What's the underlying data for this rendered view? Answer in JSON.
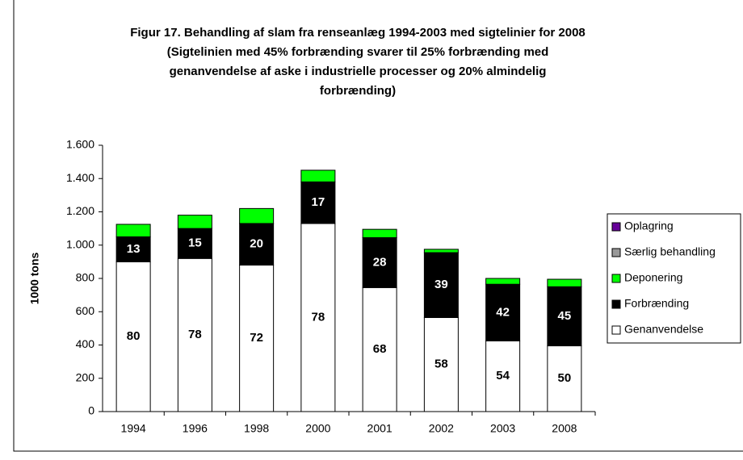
{
  "chart_data": {
    "type": "stacked_bar",
    "title": [
      "Figur 17. Behandling af slam fra renseanlæg 1994-2003 med sigtelinier for 2008",
      "(Sigtelinien med 45% forbrænding svarer til 25% forbrænding med",
      "genanvendelse af aske i industrielle processer og 20% almindelig",
      "forbrænding)"
    ],
    "y_label": "1000 tons",
    "categories": [
      "1994",
      "1996",
      "1998",
      "2000",
      "2001",
      "2002",
      "2003",
      "2008"
    ],
    "series": [
      {
        "name": "Genanvendelse",
        "color": "#ffffff",
        "values": [
          900,
          920,
          880,
          1130,
          745,
          565,
          425,
          395
        ],
        "labels": [
          80,
          78,
          72,
          78,
          68,
          58,
          54,
          50
        ]
      },
      {
        "name": "Forbrænding",
        "color": "#000000",
        "values": [
          150,
          180,
          250,
          250,
          300,
          390,
          340,
          355
        ],
        "labels": [
          13,
          15,
          20,
          17,
          28,
          39,
          42,
          45
        ]
      },
      {
        "name": "Deponering",
        "color": "#00ff00",
        "values": [
          75,
          80,
          90,
          70,
          50,
          20,
          35,
          45
        ]
      },
      {
        "name": "Særlig behandling",
        "color": "#999999",
        "values": [
          0,
          0,
          0,
          0,
          0,
          0,
          0,
          0
        ]
      },
      {
        "name": "Oplagring",
        "color": "#660099",
        "values": [
          0,
          0,
          0,
          0,
          0,
          0,
          0,
          0
        ]
      }
    ],
    "ylim": [
      0,
      1600
    ],
    "yticks": [
      0,
      200,
      400,
      600,
      800,
      {
        "value": 1000,
        "label": "1.000"
      },
      {
        "value": 1200,
        "label": "1.200"
      },
      {
        "value": 1400,
        "label": "1.400"
      },
      {
        "value": 1600,
        "label": "1.600"
      }
    ],
    "legend": "right"
  }
}
